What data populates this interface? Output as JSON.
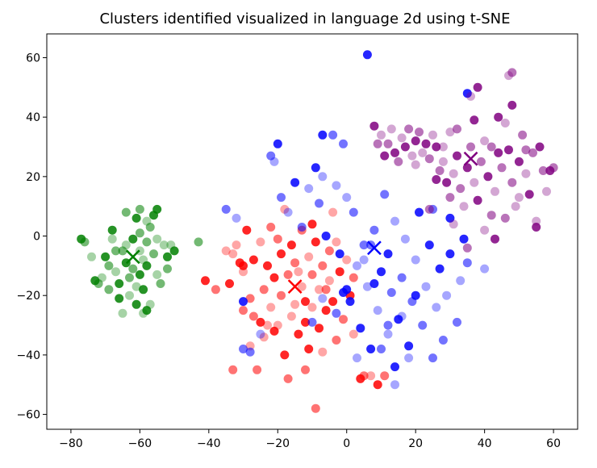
{
  "chart_data": {
    "type": "scatter",
    "title": "Clusters identified visualized in language 2d using t-SNE",
    "xlabel": "",
    "ylabel": "",
    "xlim": [
      -87,
      67
    ],
    "ylim": [
      -65,
      68
    ],
    "xticks": [
      -80,
      -60,
      -40,
      -20,
      0,
      20,
      40,
      60
    ],
    "yticks": [
      60,
      40,
      20,
      0,
      -20,
      -40,
      -60
    ],
    "xtick_labels": [
      "−80",
      "−60",
      "−40",
      "−20",
      "0",
      "20",
      "40",
      "60"
    ],
    "ytick_labels": [
      "60",
      "40",
      "20",
      "0",
      "−20",
      "−40",
      "−60"
    ],
    "grid": false,
    "legend": "none",
    "series": [
      {
        "color": "#008000",
        "centroid": [
          -62,
          -7
        ],
        "points": [
          [
            -77,
            -1
          ],
          [
            -76,
            -2
          ],
          [
            -74,
            -7
          ],
          [
            -73,
            -15
          ],
          [
            -72,
            -16
          ],
          [
            -71,
            -14
          ],
          [
            -70,
            -7
          ],
          [
            -69,
            -10
          ],
          [
            -68,
            -1
          ],
          [
            -68,
            2
          ],
          [
            -67,
            -5
          ],
          [
            -67,
            -12
          ],
          [
            -66,
            -16
          ],
          [
            -65,
            -5
          ],
          [
            -64,
            -3
          ],
          [
            -64,
            -9
          ],
          [
            -63,
            -14
          ],
          [
            -63,
            -20
          ],
          [
            -62,
            -1
          ],
          [
            -62,
            -11
          ],
          [
            -61,
            -17
          ],
          [
            -61,
            -23
          ],
          [
            -60,
            1
          ],
          [
            -60,
            -5
          ],
          [
            -60,
            -13
          ],
          [
            -60,
            9
          ],
          [
            -59,
            -8
          ],
          [
            -59,
            -18
          ],
          [
            -58,
            -2
          ],
          [
            -58,
            5
          ],
          [
            -58,
            -10
          ],
          [
            -57,
            3
          ],
          [
            -57,
            -23
          ],
          [
            -56,
            7
          ],
          [
            -56,
            -6
          ],
          [
            -55,
            -13
          ],
          [
            -55,
            9
          ],
          [
            -54,
            -16
          ],
          [
            -53,
            -3
          ],
          [
            -52,
            -7
          ],
          [
            -52,
            -11
          ],
          [
            -51,
            -3
          ],
          [
            -50,
            -5
          ],
          [
            -43,
            -2
          ],
          [
            -65,
            -26
          ],
          [
            -66,
            -21
          ],
          [
            -69,
            -18
          ],
          [
            -59,
            -26
          ],
          [
            -61,
            6
          ],
          [
            -64,
            8
          ],
          [
            -55,
            -1
          ],
          [
            -58,
            -25
          ]
        ]
      },
      {
        "color": "#ff0000",
        "centroid": [
          -15,
          -17
        ],
        "points": [
          [
            -41,
            -15
          ],
          [
            -38,
            -18
          ],
          [
            -35,
            -5
          ],
          [
            -34,
            -16
          ],
          [
            -33,
            -45
          ],
          [
            -32,
            -3
          ],
          [
            -31,
            -9
          ],
          [
            -30,
            -25
          ],
          [
            -30,
            -12
          ],
          [
            -29,
            2
          ],
          [
            -28,
            -21
          ],
          [
            -28,
            -37
          ],
          [
            -27,
            -8
          ],
          [
            -26,
            -45
          ],
          [
            -25,
            -2
          ],
          [
            -25,
            -29
          ],
          [
            -24,
            -18
          ],
          [
            -24,
            -34
          ],
          [
            -23,
            -10
          ],
          [
            -22,
            3
          ],
          [
            -22,
            -24
          ],
          [
            -21,
            -14
          ],
          [
            -20,
            -1
          ],
          [
            -20,
            -30
          ],
          [
            -19,
            -6
          ],
          [
            -19,
            -20
          ],
          [
            -18,
            9
          ],
          [
            -18,
            -40
          ],
          [
            -17,
            -13
          ],
          [
            -16,
            -27
          ],
          [
            -16,
            -3
          ],
          [
            -15,
            -9
          ],
          [
            -15,
            -23
          ],
          [
            -14,
            -33
          ],
          [
            -13,
            2
          ],
          [
            -13,
            -17
          ],
          [
            -12,
            -29
          ],
          [
            -12,
            -45
          ],
          [
            -11,
            -7
          ],
          [
            -11,
            -38
          ],
          [
            -10,
            -13
          ],
          [
            -10,
            -24
          ],
          [
            -9,
            -2
          ],
          [
            -9,
            -58
          ],
          [
            -8,
            -18
          ],
          [
            -8,
            -31
          ],
          [
            -7,
            -10
          ],
          [
            -7,
            -39
          ],
          [
            -6,
            -25
          ],
          [
            -5,
            -5
          ],
          [
            -5,
            -15
          ],
          [
            -4,
            -22
          ],
          [
            -3,
            -35
          ],
          [
            -3,
            -2
          ],
          [
            -2,
            -12
          ],
          [
            -1,
            -28
          ],
          [
            0,
            -8
          ],
          [
            1,
            -20
          ],
          [
            2,
            -14
          ],
          [
            2,
            -33
          ],
          [
            4,
            -48
          ],
          [
            5,
            -47
          ],
          [
            7,
            -47
          ],
          [
            9,
            -50
          ],
          [
            11,
            -47
          ],
          [
            -23,
            -30
          ],
          [
            -21,
            -32
          ],
          [
            -27,
            -27
          ],
          [
            -14,
            -12
          ],
          [
            -12,
            -22
          ],
          [
            -6,
            -18
          ],
          [
            -4,
            8
          ],
          [
            -10,
            4
          ],
          [
            -17,
            -48
          ],
          [
            -33,
            -6
          ],
          [
            -30,
            -10
          ]
        ]
      },
      {
        "color": "#0000ff",
        "centroid": [
          8,
          -4
        ],
        "points": [
          [
            6,
            61
          ],
          [
            -22,
            27
          ],
          [
            -21,
            25
          ],
          [
            -20,
            31
          ],
          [
            -19,
            13
          ],
          [
            -17,
            8
          ],
          [
            -15,
            18
          ],
          [
            -13,
            3
          ],
          [
            -11,
            16
          ],
          [
            -9,
            23
          ],
          [
            -8,
            11
          ],
          [
            -7,
            20
          ],
          [
            -6,
            0
          ],
          [
            -4,
            34
          ],
          [
            -3,
            17
          ],
          [
            -2,
            -6
          ],
          [
            -1,
            31
          ],
          [
            0,
            13
          ],
          [
            1,
            -22
          ],
          [
            2,
            8
          ],
          [
            3,
            -10
          ],
          [
            4,
            -31
          ],
          [
            5,
            -3
          ],
          [
            6,
            -17
          ],
          [
            7,
            -38
          ],
          [
            8,
            2
          ],
          [
            9,
            -25
          ],
          [
            10,
            -12
          ],
          [
            11,
            14
          ],
          [
            12,
            -33
          ],
          [
            12,
            -6
          ],
          [
            13,
            -19
          ],
          [
            14,
            5
          ],
          [
            15,
            -28
          ],
          [
            16,
            -14
          ],
          [
            17,
            -1
          ],
          [
            18,
            -37
          ],
          [
            19,
            -22
          ],
          [
            20,
            -8
          ],
          [
            21,
            8
          ],
          [
            22,
            -30
          ],
          [
            23,
            -17
          ],
          [
            24,
            -3
          ],
          [
            25,
            -41
          ],
          [
            26,
            -24
          ],
          [
            27,
            -11
          ],
          [
            28,
            -35
          ],
          [
            29,
            -20
          ],
          [
            30,
            -6
          ],
          [
            32,
            -29
          ],
          [
            33,
            -15
          ],
          [
            34,
            -1
          ],
          [
            35,
            -9
          ],
          [
            40,
            -11
          ],
          [
            30,
            6
          ],
          [
            25,
            9
          ],
          [
            18,
            -41
          ],
          [
            14,
            -44
          ],
          [
            10,
            -38
          ],
          [
            3,
            -41
          ],
          [
            0,
            -18
          ],
          [
            -3,
            -26
          ],
          [
            -7,
            -21
          ],
          [
            8,
            -16
          ],
          [
            12,
            -30
          ],
          [
            16,
            -27
          ],
          [
            20,
            -20
          ],
          [
            -28,
            -39
          ],
          [
            -25,
            -33
          ],
          [
            -30,
            -22
          ],
          [
            -35,
            9
          ],
          [
            -32,
            6
          ],
          [
            35,
            48
          ],
          [
            7,
            -3
          ],
          [
            5,
            -8
          ],
          [
            -7,
            34
          ],
          [
            -10,
            -29
          ],
          [
            14,
            -50
          ],
          [
            -1,
            -19
          ],
          [
            -30,
            -38
          ]
        ]
      },
      {
        "color": "#800080",
        "centroid": [
          36,
          26
        ],
        "points": [
          [
            8,
            37
          ],
          [
            9,
            31
          ],
          [
            10,
            34
          ],
          [
            11,
            27
          ],
          [
            12,
            31
          ],
          [
            13,
            36
          ],
          [
            14,
            28
          ],
          [
            15,
            25
          ],
          [
            16,
            33
          ],
          [
            17,
            30
          ],
          [
            18,
            36
          ],
          [
            19,
            27
          ],
          [
            20,
            32
          ],
          [
            21,
            35
          ],
          [
            22,
            28
          ],
          [
            23,
            31
          ],
          [
            24,
            26
          ],
          [
            25,
            34
          ],
          [
            26,
            30
          ],
          [
            27,
            22
          ],
          [
            28,
            25
          ],
          [
            29,
            18
          ],
          [
            30,
            13
          ],
          [
            31,
            21
          ],
          [
            32,
            27
          ],
          [
            33,
            16
          ],
          [
            34,
            10
          ],
          [
            35,
            23
          ],
          [
            36,
            30
          ],
          [
            37,
            18
          ],
          [
            38,
            12
          ],
          [
            39,
            25
          ],
          [
            40,
            32
          ],
          [
            41,
            20
          ],
          [
            42,
            7
          ],
          [
            43,
            15
          ],
          [
            44,
            28
          ],
          [
            45,
            23
          ],
          [
            46,
            38
          ],
          [
            47,
            29
          ],
          [
            48,
            18
          ],
          [
            49,
            10
          ],
          [
            50,
            25
          ],
          [
            51,
            34
          ],
          [
            52,
            21
          ],
          [
            53,
            14
          ],
          [
            54,
            28
          ],
          [
            55,
            5
          ],
          [
            56,
            30
          ],
          [
            57,
            22
          ],
          [
            58,
            15
          ],
          [
            59,
            22
          ],
          [
            60,
            23
          ],
          [
            36,
            47
          ],
          [
            38,
            50
          ],
          [
            48,
            55
          ],
          [
            47,
            54
          ],
          [
            44,
            40
          ],
          [
            32,
            36
          ],
          [
            28,
            30
          ],
          [
            37,
            39
          ],
          [
            42,
            30
          ],
          [
            40,
            2
          ],
          [
            43,
            -1
          ],
          [
            46,
            6
          ],
          [
            50,
            13
          ],
          [
            55,
            3
          ],
          [
            35,
            -4
          ],
          [
            31,
            4
          ],
          [
            26,
            19
          ],
          [
            24,
            9
          ],
          [
            30,
            35
          ],
          [
            48,
            44
          ],
          [
            52,
            29
          ],
          [
            20,
            24
          ]
        ]
      }
    ]
  }
}
